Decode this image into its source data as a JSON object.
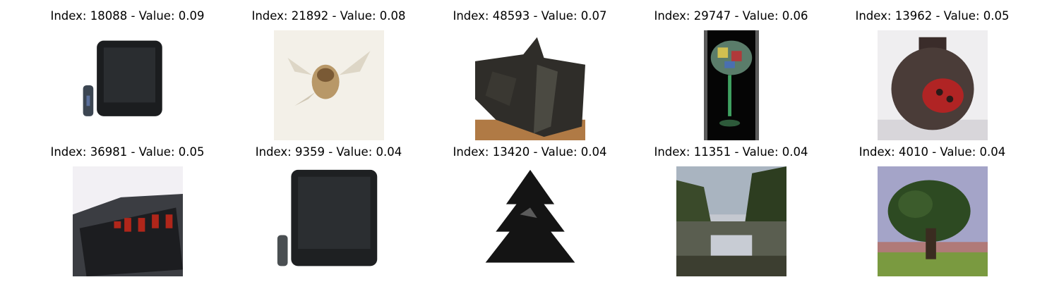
{
  "figure": {
    "panels": [
      {
        "index": "18088",
        "value": "0.09",
        "caption": "Index: 18088 - Value: 0.09",
        "subject": "television-remote"
      },
      {
        "index": "21892",
        "value": "0.08",
        "caption": "Index: 21892 - Value: 0.08",
        "subject": "bee"
      },
      {
        "index": "48593",
        "value": "0.07",
        "caption": "Index: 48593 - Value: 0.07",
        "subject": "rock-object"
      },
      {
        "index": "29747",
        "value": "0.06",
        "caption": "Index: 29747 - Value: 0.06",
        "subject": "glass-decor"
      },
      {
        "index": "13962",
        "value": "0.05",
        "caption": "Index: 13962 - Value: 0.05",
        "subject": "ladybug-jar"
      },
      {
        "index": "36981",
        "value": "0.05",
        "caption": "Index: 36981 - Value: 0.05",
        "subject": "alarm-clock"
      },
      {
        "index": "9359",
        "value": "0.04",
        "caption": "Index: 9359 - Value: 0.04",
        "subject": "television"
      },
      {
        "index": "13420",
        "value": "0.04",
        "caption": "Index: 13420 - Value: 0.04",
        "subject": "pine-tree"
      },
      {
        "index": "11351",
        "value": "0.04",
        "caption": "Index: 11351 - Value: 0.04",
        "subject": "lake-forest"
      },
      {
        "index": "4010",
        "value": "0.04",
        "caption": "Index: 4010 - Value: 0.04",
        "subject": "oak-tree"
      }
    ]
  }
}
